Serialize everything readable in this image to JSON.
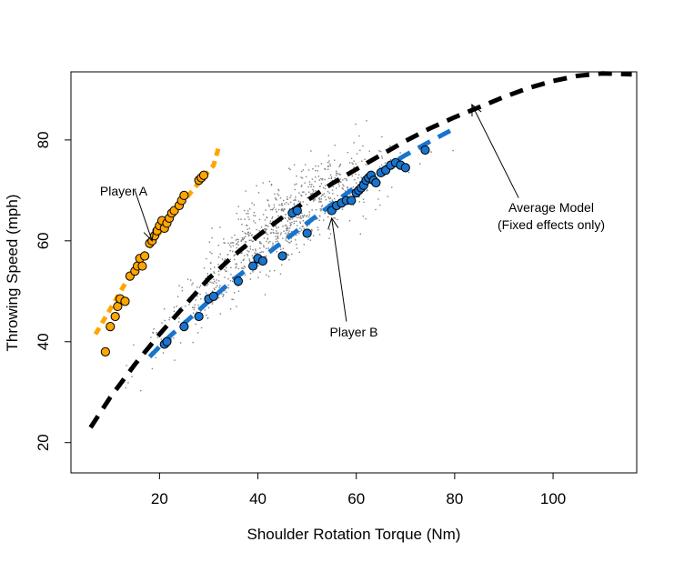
{
  "chart_data": {
    "type": "scatter",
    "title": "",
    "xlabel": "Shoulder Rotation Torque (Nm)",
    "ylabel": "Throwing Speed (mph)",
    "xlim": [
      2,
      117
    ],
    "ylim": [
      14,
      93.5
    ],
    "x_ticks": [
      20,
      40,
      60,
      80,
      100
    ],
    "y_ticks": [
      20,
      40,
      60,
      80
    ],
    "grid": false,
    "colors": {
      "background_points": "#808080",
      "average_model": "#000000",
      "player_a": "#FFA500",
      "player_b": "#1874CD",
      "point_outline": "#000000"
    },
    "series": [
      {
        "name": "Average Model",
        "kind": "dashed-curve",
        "x": [
          6,
          10,
          15,
          20,
          25,
          30,
          35,
          40,
          45,
          50,
          55,
          60,
          65,
          70,
          75,
          80,
          85,
          90,
          95,
          100,
          105,
          110,
          116
        ],
        "y": [
          23,
          29,
          35.5,
          41.5,
          47,
          52.5,
          57,
          61,
          64.7,
          68,
          71.3,
          74.2,
          77,
          79.8,
          82.3,
          84.5,
          86.5,
          88.5,
          90.3,
          91.7,
          92.7,
          93.2,
          93
        ]
      },
      {
        "name": "Player A fit",
        "kind": "dashed-curve",
        "x": [
          7,
          10,
          13,
          16,
          19,
          22,
          25,
          28,
          31,
          32
        ],
        "y": [
          41.5,
          46.5,
          51.5,
          56,
          60.3,
          64.2,
          68,
          71.5,
          75,
          78.5
        ]
      },
      {
        "name": "Player B fit",
        "kind": "dashed-curve",
        "x": [
          18,
          22,
          26,
          30,
          35,
          40,
          45,
          50,
          55,
          60,
          65,
          70,
          75,
          80
        ],
        "y": [
          37,
          41,
          44.5,
          48,
          52.3,
          56,
          59.8,
          63.5,
          67.2,
          70.8,
          74,
          77,
          79.7,
          82.3
        ]
      },
      {
        "name": "Player A",
        "kind": "points",
        "x": [
          9,
          10,
          11,
          11.5,
          12,
          13,
          14,
          15,
          15.5,
          16,
          16.5,
          17,
          18,
          18.5,
          19,
          19.5,
          20,
          20.5,
          21,
          21.5,
          22,
          22.5,
          23,
          24,
          24.5,
          25,
          28,
          28.5,
          29
        ],
        "y": [
          38,
          43,
          45,
          47,
          48.5,
          48,
          53,
          54,
          55,
          56.5,
          55,
          57,
          59.5,
          60,
          61,
          62,
          63,
          64,
          62.5,
          63.5,
          64.5,
          65.5,
          66,
          67,
          68,
          69,
          72,
          72.5,
          73
        ]
      },
      {
        "name": "Player B",
        "kind": "points",
        "x": [
          21,
          21.5,
          25,
          28,
          30,
          31,
          36,
          39,
          40,
          41,
          45,
          47,
          48,
          50,
          55,
          56,
          57,
          58,
          59,
          60,
          60.5,
          61,
          61.5,
          62,
          62.5,
          63,
          63.5,
          64,
          65,
          66,
          67,
          68,
          69,
          70,
          74
        ],
        "y": [
          39.5,
          40,
          43,
          45,
          48.5,
          49,
          52,
          55,
          56.5,
          56,
          57,
          65.5,
          66,
          61.5,
          66,
          67,
          67.5,
          68,
          68,
          69.5,
          70,
          70.5,
          71,
          72,
          72.5,
          73,
          72,
          71.5,
          73.5,
          74,
          75,
          75.5,
          75,
          74.5,
          78
        ]
      }
    ],
    "annotations": [
      {
        "text": "Player A",
        "arrow_from": [
          15,
          70
        ],
        "arrow_to": [
          18.5,
          60
        ]
      },
      {
        "text": "Player B",
        "arrow_from": [
          58,
          44
        ],
        "arrow_to": [
          55,
          64.5
        ]
      },
      {
        "text": "Average Model",
        "text2": "(Fixed effects only)",
        "arrow_from": [
          93,
          68.5
        ],
        "arrow_to": [
          83.5,
          87
        ]
      }
    ]
  }
}
